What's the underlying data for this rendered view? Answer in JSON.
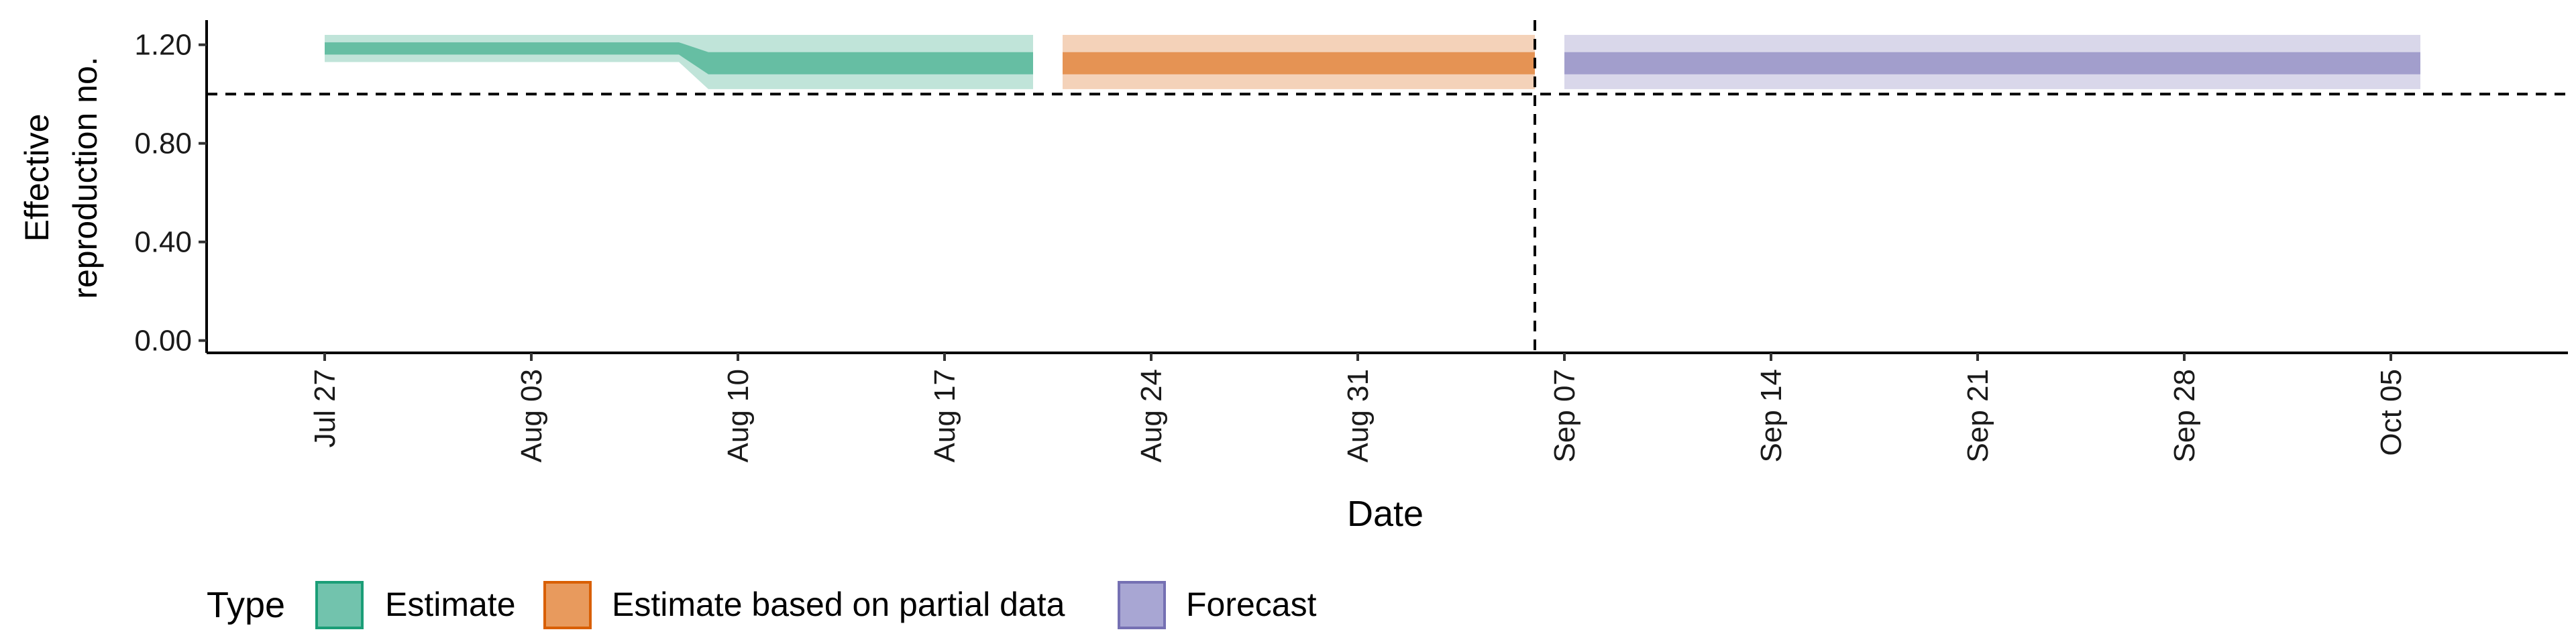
{
  "chart_data": {
    "type": "area",
    "title": "",
    "xlabel": "Date",
    "ylabel_lines": [
      "Effective",
      "reproduction no."
    ],
    "x_ticks": [
      "Jul 27",
      "Aug 03",
      "Aug 10",
      "Aug 17",
      "Aug 24",
      "Aug 31",
      "Sep 07",
      "Sep 14",
      "Sep 21",
      "Sep 28",
      "Oct 05"
    ],
    "x_tick_dates": [
      "2020-07-27",
      "2020-08-03",
      "2020-08-10",
      "2020-08-17",
      "2020-08-24",
      "2020-08-31",
      "2020-09-07",
      "2020-09-14",
      "2020-09-21",
      "2020-09-28",
      "2020-10-05"
    ],
    "xlim": [
      "2020-07-23",
      "2020-10-11"
    ],
    "y_ticks": [
      "0.00",
      "0.40",
      "0.80",
      "1.20"
    ],
    "y_tick_values": [
      0,
      0.4,
      0.8,
      1.2
    ],
    "ylim": [
      -0.05,
      1.3
    ],
    "reference_lines": {
      "horizontal_y": 1.0,
      "vertical_date": "2020-09-06"
    },
    "grid": false,
    "legend_position": "bottom-left",
    "legend_title": "Type",
    "series": [
      {
        "name": "Estimate",
        "color": "#1b9e77",
        "points": [
          {
            "date": "2020-07-27",
            "outer_lower": 1.13,
            "outer_upper": 1.24,
            "inner_lower": 1.16,
            "inner_upper": 1.21
          },
          {
            "date": "2020-08-08",
            "outer_lower": 1.13,
            "outer_upper": 1.24,
            "inner_lower": 1.16,
            "inner_upper": 1.21
          },
          {
            "date": "2020-08-09",
            "outer_lower": 1.02,
            "outer_upper": 1.24,
            "inner_lower": 1.08,
            "inner_upper": 1.17
          },
          {
            "date": "2020-08-20",
            "outer_lower": 1.02,
            "outer_upper": 1.24,
            "inner_lower": 1.08,
            "inner_upper": 1.17
          }
        ]
      },
      {
        "name": "Estimate based on partial data",
        "color": "#d95f02",
        "points": [
          {
            "date": "2020-08-21",
            "outer_lower": 1.02,
            "outer_upper": 1.24,
            "inner_lower": 1.08,
            "inner_upper": 1.17
          },
          {
            "date": "2020-09-06",
            "outer_lower": 1.02,
            "outer_upper": 1.24,
            "inner_lower": 1.08,
            "inner_upper": 1.17
          }
        ]
      },
      {
        "name": "Forecast",
        "color": "#7570b3",
        "points": [
          {
            "date": "2020-09-07",
            "outer_lower": 1.02,
            "outer_upper": 1.24,
            "inner_lower": 1.08,
            "inner_upper": 1.17
          },
          {
            "date": "2020-10-06",
            "outer_lower": 1.02,
            "outer_upper": 1.24,
            "inner_lower": 1.08,
            "inner_upper": 1.17
          }
        ]
      }
    ]
  }
}
